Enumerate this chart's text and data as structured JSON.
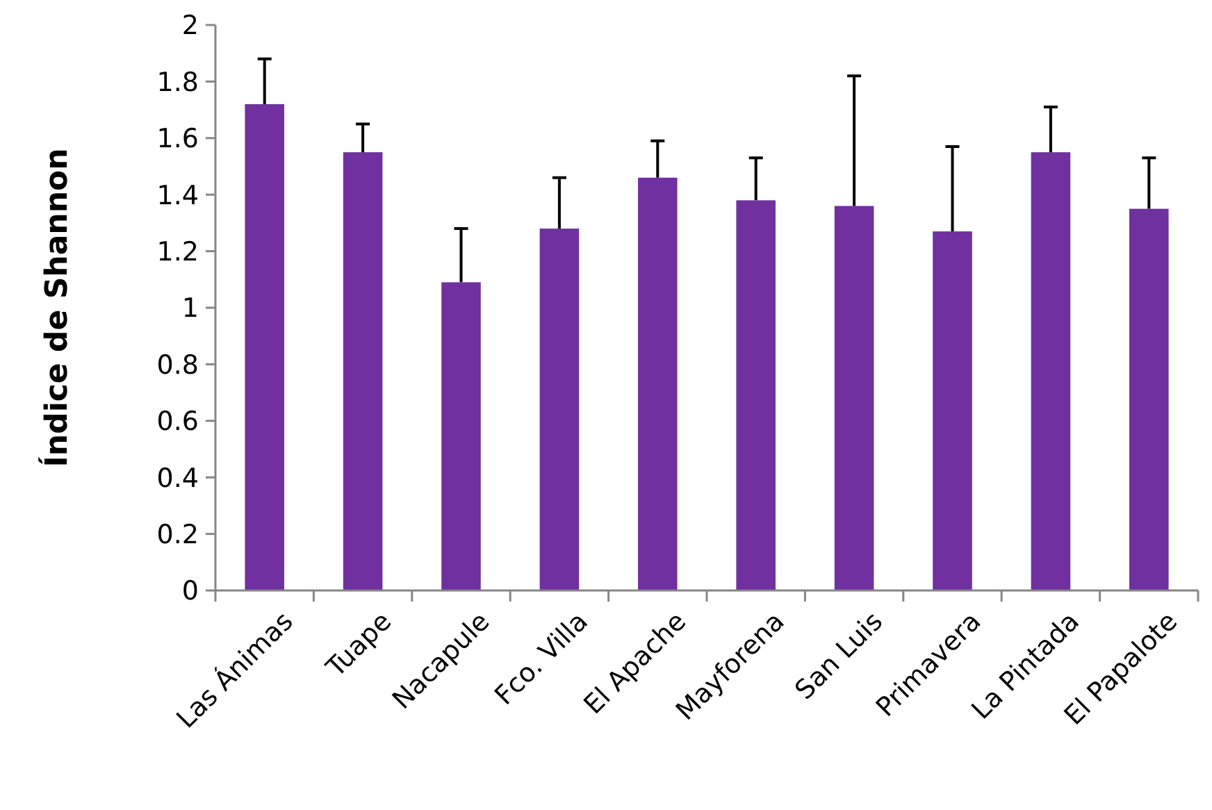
{
  "chart_data": {
    "type": "bar",
    "ylabel": "Índice de Shannon",
    "categories": [
      "Las Ánimas",
      "Tuape",
      "Nacapule",
      "Fco. Villa",
      "El Apache",
      "Mayforena",
      "San Luis",
      "Primavera",
      "La Pintada",
      "El Papalote"
    ],
    "values": [
      1.72,
      1.55,
      1.09,
      1.28,
      1.46,
      1.38,
      1.36,
      1.27,
      1.55,
      1.35
    ],
    "errors": [
      [
        1.72,
        1.88
      ],
      [
        1.55,
        1.65
      ],
      [
        1.09,
        1.28
      ],
      [
        1.28,
        1.46
      ],
      [
        1.46,
        1.59
      ],
      [
        1.38,
        1.53
      ],
      [
        1.36,
        1.82
      ],
      [
        1.27,
        1.57
      ],
      [
        1.55,
        1.71
      ],
      [
        1.35,
        1.53
      ]
    ],
    "color": "#7030a0",
    "ylim": [
      0,
      2
    ],
    "yticks": [
      0,
      0.2,
      0.4,
      0.6,
      0.8,
      1,
      1.2,
      1.4,
      1.6,
      1.8,
      2
    ],
    "grid": false
  }
}
